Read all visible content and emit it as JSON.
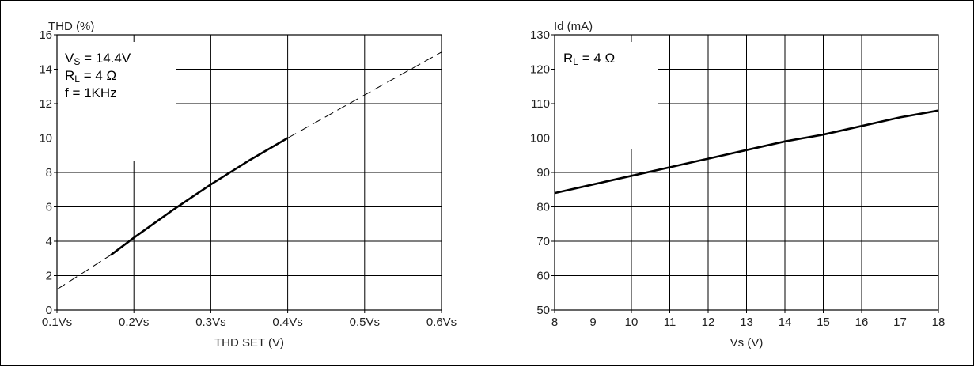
{
  "chart_data": [
    {
      "type": "line",
      "xlabel": "THD SET (V)",
      "ylabel": "THD (%)",
      "xlim": [
        0.1,
        0.6
      ],
      "ylim": [
        0,
        16
      ],
      "x_ticks": [
        0.1,
        0.2,
        0.3,
        0.4,
        0.5,
        0.6
      ],
      "x_tick_labels": [
        "0.1Vs",
        "0.2Vs",
        "0.3Vs",
        "0.4Vs",
        "0.5Vs",
        "0.6Vs"
      ],
      "y_ticks": [
        0,
        2,
        4,
        6,
        8,
        10,
        12,
        14,
        16
      ],
      "y_tick_labels": [
        "0",
        "2",
        "4",
        "6",
        "8",
        "10",
        "12",
        "14",
        "16"
      ],
      "grid": true,
      "annotations": [
        {
          "main": "V",
          "sub": "S",
          "rest": " = 14.4V"
        },
        {
          "main": "R",
          "sub": "L",
          "rest": " = 4 Ω"
        },
        {
          "main": "f = 1KHz",
          "sub": "",
          "rest": ""
        }
      ],
      "series": [
        {
          "style": "solid",
          "x": [
            0.17,
            0.2,
            0.25,
            0.3,
            0.35,
            0.4
          ],
          "y": [
            3.2,
            4.2,
            5.8,
            7.3,
            8.7,
            10.0
          ]
        },
        {
          "style": "dashed",
          "x": [
            0.1,
            0.17
          ],
          "y": [
            1.2,
            3.2
          ]
        },
        {
          "style": "dashed",
          "x": [
            0.4,
            0.5,
            0.6
          ],
          "y": [
            10.0,
            12.5,
            15.0
          ]
        }
      ]
    },
    {
      "type": "line",
      "xlabel": "Vs (V)",
      "ylabel": "Id (mA)",
      "xlim": [
        8,
        18
      ],
      "ylim": [
        50,
        130
      ],
      "x_ticks": [
        8,
        9,
        10,
        11,
        12,
        13,
        14,
        15,
        16,
        17,
        18
      ],
      "x_tick_labels": [
        "8",
        "9",
        "10",
        "11",
        "12",
        "13",
        "14",
        "15",
        "16",
        "17",
        "18"
      ],
      "y_ticks": [
        50,
        60,
        70,
        80,
        90,
        100,
        110,
        120,
        130
      ],
      "y_tick_labels": [
        "50",
        "60",
        "70",
        "80",
        "90",
        "100",
        "110",
        "120",
        "130"
      ],
      "grid": true,
      "annotations": [
        {
          "main": "R",
          "sub": "L",
          "rest": " = 4 Ω"
        }
      ],
      "series": [
        {
          "style": "solid",
          "x": [
            8,
            9,
            10,
            11,
            12,
            13,
            14,
            15,
            16,
            17,
            18
          ],
          "y": [
            84,
            86.5,
            89,
            91.5,
            94,
            96.5,
            99,
            101,
            103.5,
            106,
            108
          ]
        }
      ]
    }
  ]
}
